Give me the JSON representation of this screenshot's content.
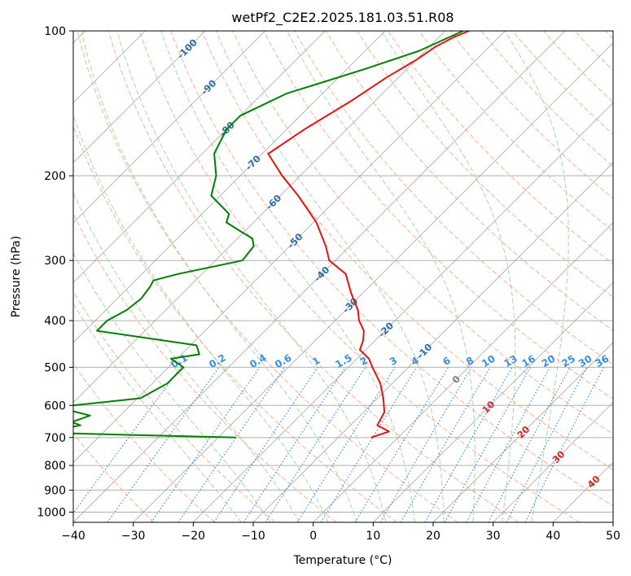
{
  "chart_data": {
    "type": "line",
    "subtype": "skew-t",
    "title": "wetPf2_C2E2.2025.181.03.51.R08",
    "xlabel": "Temperature (°C)",
    "ylabel": "Pressure (hPa)",
    "xlim": [
      -40,
      50
    ],
    "ylim": [
      1050,
      100
    ],
    "yscale": "log",
    "x_ticks": [
      -40,
      -30,
      -20,
      -10,
      0,
      10,
      20,
      30,
      40,
      50
    ],
    "y_ticks": [
      100,
      200,
      300,
      400,
      500,
      600,
      700,
      800,
      900,
      1000
    ],
    "series": [
      {
        "role": "temperature",
        "color": "#e8130f",
        "p": [
          100,
          103,
          108,
          115,
          125,
          140,
          160,
          180,
          200,
          220,
          250,
          280,
          300,
          320,
          350,
          380,
          400,
          420,
          440,
          460,
          480,
          500,
          540,
          580,
          620,
          660,
          680,
          700
        ],
        "t": [
          -56,
          -57.5,
          -59,
          -60,
          -62,
          -64,
          -67,
          -69,
          -63,
          -57,
          -49.5,
          -44,
          -41,
          -36,
          -32,
          -28,
          -26,
          -23.5,
          -22,
          -21,
          -18,
          -16,
          -12,
          -9,
          -6.5,
          -5.5,
          -2.5,
          -4.5
        ]
      },
      {
        "role": "dewpoint",
        "color": "#008000",
        "p": [
          100,
          110,
          120,
          135,
          150,
          160,
          170,
          180,
          200,
          220,
          240,
          250,
          260,
          270,
          280,
          300,
          320,
          330,
          340,
          360,
          380,
          400,
          410,
          420,
          450,
          470,
          480,
          500,
          540,
          580,
          605,
          630,
          650,
          660,
          670,
          680,
          685,
          690,
          700
        ],
        "td": [
          -57,
          -61,
          -67,
          -76,
          -80,
          -80,
          -79,
          -78,
          -74,
          -71.5,
          -65.5,
          -64.5,
          -61,
          -57.5,
          -56,
          -55.5,
          -64,
          -67,
          -66.5,
          -66,
          -66.5,
          -68,
          -68,
          -68,
          -49,
          -47,
          -51,
          -47.5,
          -47.5,
          -49.5,
          -62,
          -55,
          -57,
          -55,
          -57,
          -56.5,
          -57,
          -47,
          -27
        ]
      }
    ],
    "dry_adiabats_C": [
      -30,
      -20,
      -10,
      0,
      10,
      20,
      30,
      40,
      50,
      60,
      70,
      80,
      90,
      100,
      110,
      120,
      130,
      140,
      150,
      160,
      170,
      180,
      190,
      200,
      210
    ],
    "moist_adiabats_C": [
      -15,
      -10,
      -5,
      0,
      5,
      10,
      15,
      20,
      25,
      30,
      35
    ],
    "mixing_ratios_gkg": [
      0.1,
      0.2,
      0.4,
      0.6,
      1,
      1.5,
      2,
      3,
      4,
      6,
      8,
      10,
      13,
      16,
      20,
      25,
      30,
      36
    ],
    "mixing_ratio_labels": [
      "0.1",
      "0.2",
      "0.4",
      "0.6",
      "1",
      "1.5",
      "2",
      "3",
      "4",
      "6",
      "8",
      "10",
      "13",
      "16",
      "20",
      "25",
      "30",
      "36"
    ],
    "isotherm_labels": [
      {
        "t": -100,
        "p": 109,
        "text": "-100"
      },
      {
        "t": -90,
        "p": 131,
        "text": "-90"
      },
      {
        "t": -80,
        "p": 160,
        "text": "-80"
      },
      {
        "t": -70,
        "p": 188,
        "text": "-70"
      },
      {
        "t": -60,
        "p": 227,
        "text": "-60"
      },
      {
        "t": -50,
        "p": 273,
        "text": "-50"
      },
      {
        "t": -40,
        "p": 320,
        "text": "-40"
      },
      {
        "t": -30,
        "p": 372,
        "text": "-30"
      },
      {
        "t": -20,
        "p": 418,
        "text": "-20"
      },
      {
        "t": -10,
        "p": 463,
        "text": "-10"
      },
      {
        "t": 0,
        "p": 530,
        "text": "0"
      },
      {
        "t": 10,
        "p": 605,
        "text": "10"
      },
      {
        "t": 20,
        "p": 682,
        "text": "20"
      },
      {
        "t": 30,
        "p": 768,
        "text": "30"
      },
      {
        "t": 40,
        "p": 865,
        "text": "40"
      }
    ],
    "isotherm_label_colors": {
      "negative": "#2b6ea8",
      "zero": "#808080",
      "positive": "#d62728"
    },
    "colors": {
      "grid": "#b0b0b0",
      "isotherm": "#8a8a8a",
      "dry_adiabat": "#f4a582",
      "moist_adiabat": "#9fd39f",
      "mixing_ratio": "#3a8ee0",
      "adiabat_boundary": "#d9bd9a"
    },
    "grid": true
  }
}
